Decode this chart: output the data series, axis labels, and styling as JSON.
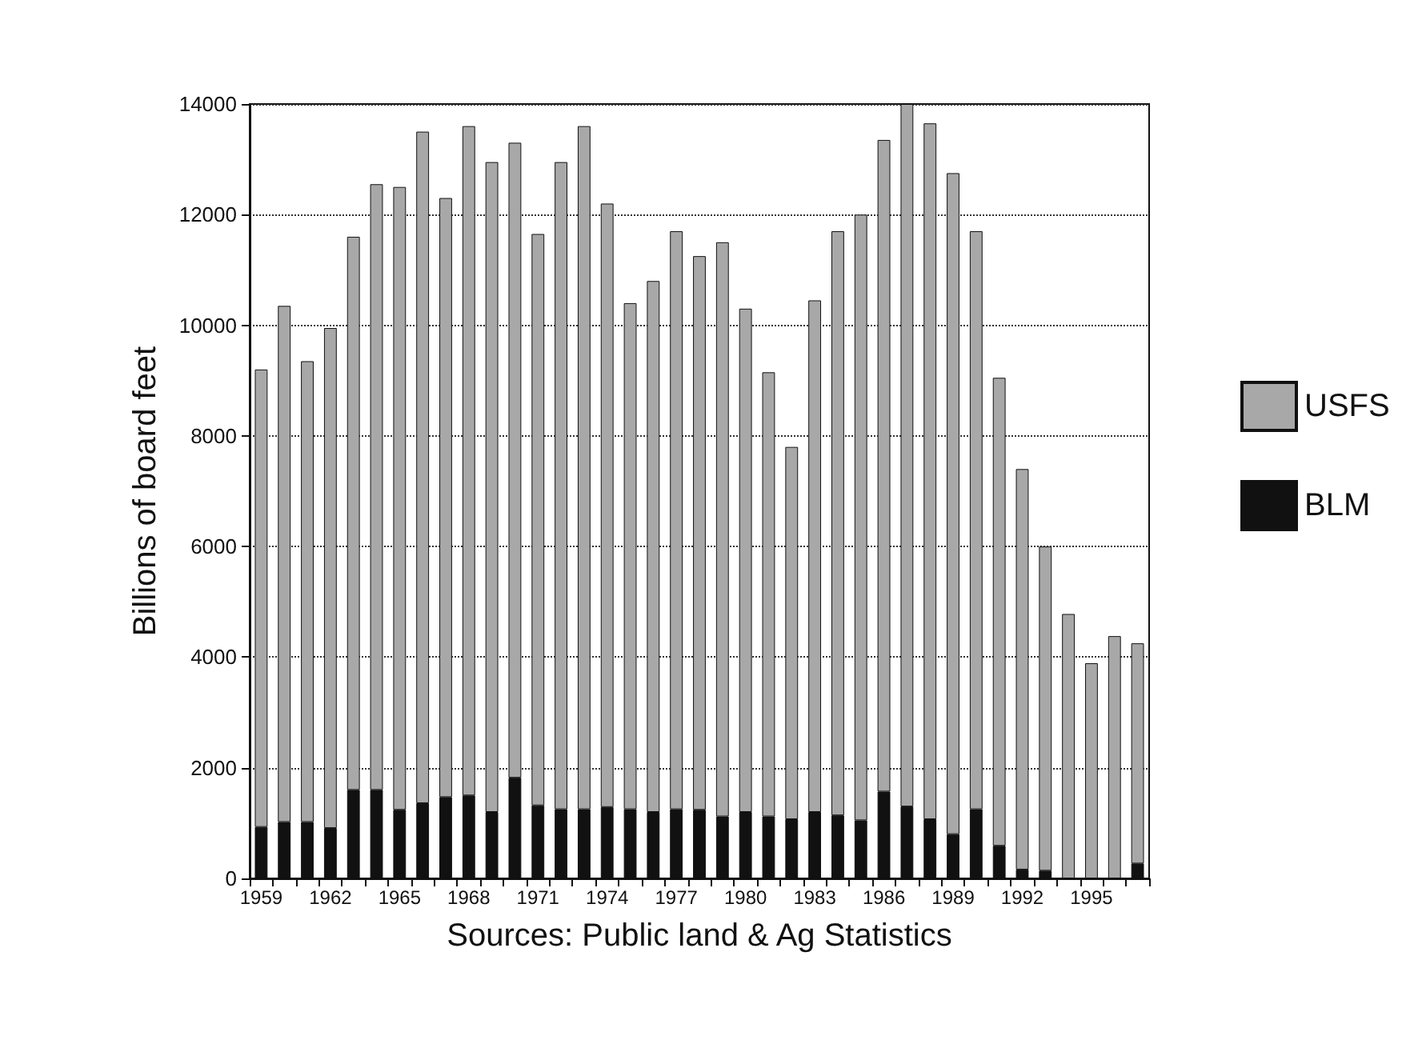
{
  "chart_data": {
    "type": "bar",
    "stacked": true,
    "xlabel": "Sources: Public land & Ag Statistics",
    "ylabel": "Billions of board feet",
    "categories": [
      "1959",
      null,
      null,
      "1962",
      null,
      null,
      "1965",
      null,
      null,
      "1968",
      null,
      null,
      "1971",
      null,
      null,
      "1974",
      null,
      null,
      "1977",
      null,
      null,
      "1980",
      null,
      null,
      "1983",
      null,
      null,
      "1986",
      null,
      null,
      "1989",
      null,
      null,
      "1992",
      null,
      null,
      "1995",
      null,
      null
    ],
    "series": [
      {
        "name": "BLM",
        "color": "#111111",
        "values": [
          930,
          1020,
          1020,
          910,
          1600,
          1600,
          1240,
          1360,
          1470,
          1500,
          1200,
          1820,
          1320,
          1250,
          1250,
          1290,
          1250,
          1200,
          1250,
          1240,
          1120,
          1200,
          1120,
          1070,
          1200,
          1140,
          1050,
          1570,
          1300,
          1070,
          800,
          1250,
          590,
          160,
          140,
          null,
          null,
          null,
          270
        ]
      },
      {
        "name": "USFS",
        "color": "#a8a8a8",
        "values": [
          8270,
          9330,
          8330,
          9040,
          10000,
          10950,
          11260,
          12140,
          10830,
          12100,
          11750,
          11480,
          10330,
          11700,
          12350,
          10910,
          9150,
          9600,
          10450,
          10010,
          10380,
          9100,
          8030,
          6730,
          9250,
          10560,
          10950,
          11780,
          12700,
          12580,
          11950,
          10450,
          8460,
          7240,
          5860,
          4780,
          3890,
          4380,
          3980
        ]
      }
    ],
    "ylim": [
      0,
      14000
    ],
    "yticks": [
      0,
      2000,
      4000,
      6000,
      8000,
      10000,
      12000,
      14000
    ],
    "grid": "y",
    "legend": "right"
  }
}
